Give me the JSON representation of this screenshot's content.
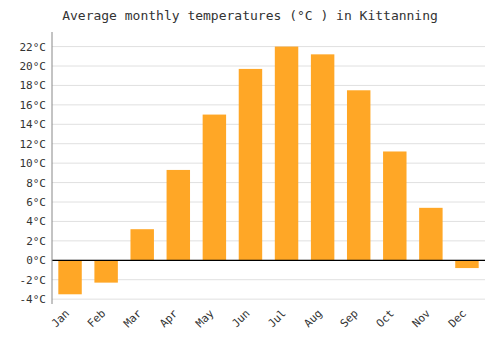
{
  "chart_data": {
    "type": "bar",
    "title": "Average monthly temperatures (°C ) in Kittanning",
    "categories": [
      "Jan",
      "Feb",
      "Mar",
      "Apr",
      "May",
      "Jun",
      "Jul",
      "Aug",
      "Sep",
      "Oct",
      "Nov",
      "Dec"
    ],
    "values": [
      -3.5,
      -2.3,
      3.2,
      9.3,
      15.0,
      19.7,
      22.0,
      21.2,
      17.5,
      11.2,
      5.4,
      -0.8
    ],
    "color": "#FFA726",
    "ylim": [
      -4.5,
      23.5
    ],
    "yticks": [
      {
        "value": -4,
        "label": "-4°C"
      },
      {
        "value": -2,
        "label": "-2°C"
      },
      {
        "value": 0,
        "label": "0°C"
      },
      {
        "value": 2,
        "label": "2°C"
      },
      {
        "value": 4,
        "label": "4°C"
      },
      {
        "value": 6,
        "label": "6°C"
      },
      {
        "value": 8,
        "label": "8°C"
      },
      {
        "value": 10,
        "label": "10°C"
      },
      {
        "value": 12,
        "label": "12°C"
      },
      {
        "value": 14,
        "label": "14°C"
      },
      {
        "value": 16,
        "label": "16°C"
      },
      {
        "value": 18,
        "label": "18°C"
      },
      {
        "value": 20,
        "label": "20°C"
      },
      {
        "value": 22,
        "label": "22°C"
      }
    ],
    "grid": true
  }
}
